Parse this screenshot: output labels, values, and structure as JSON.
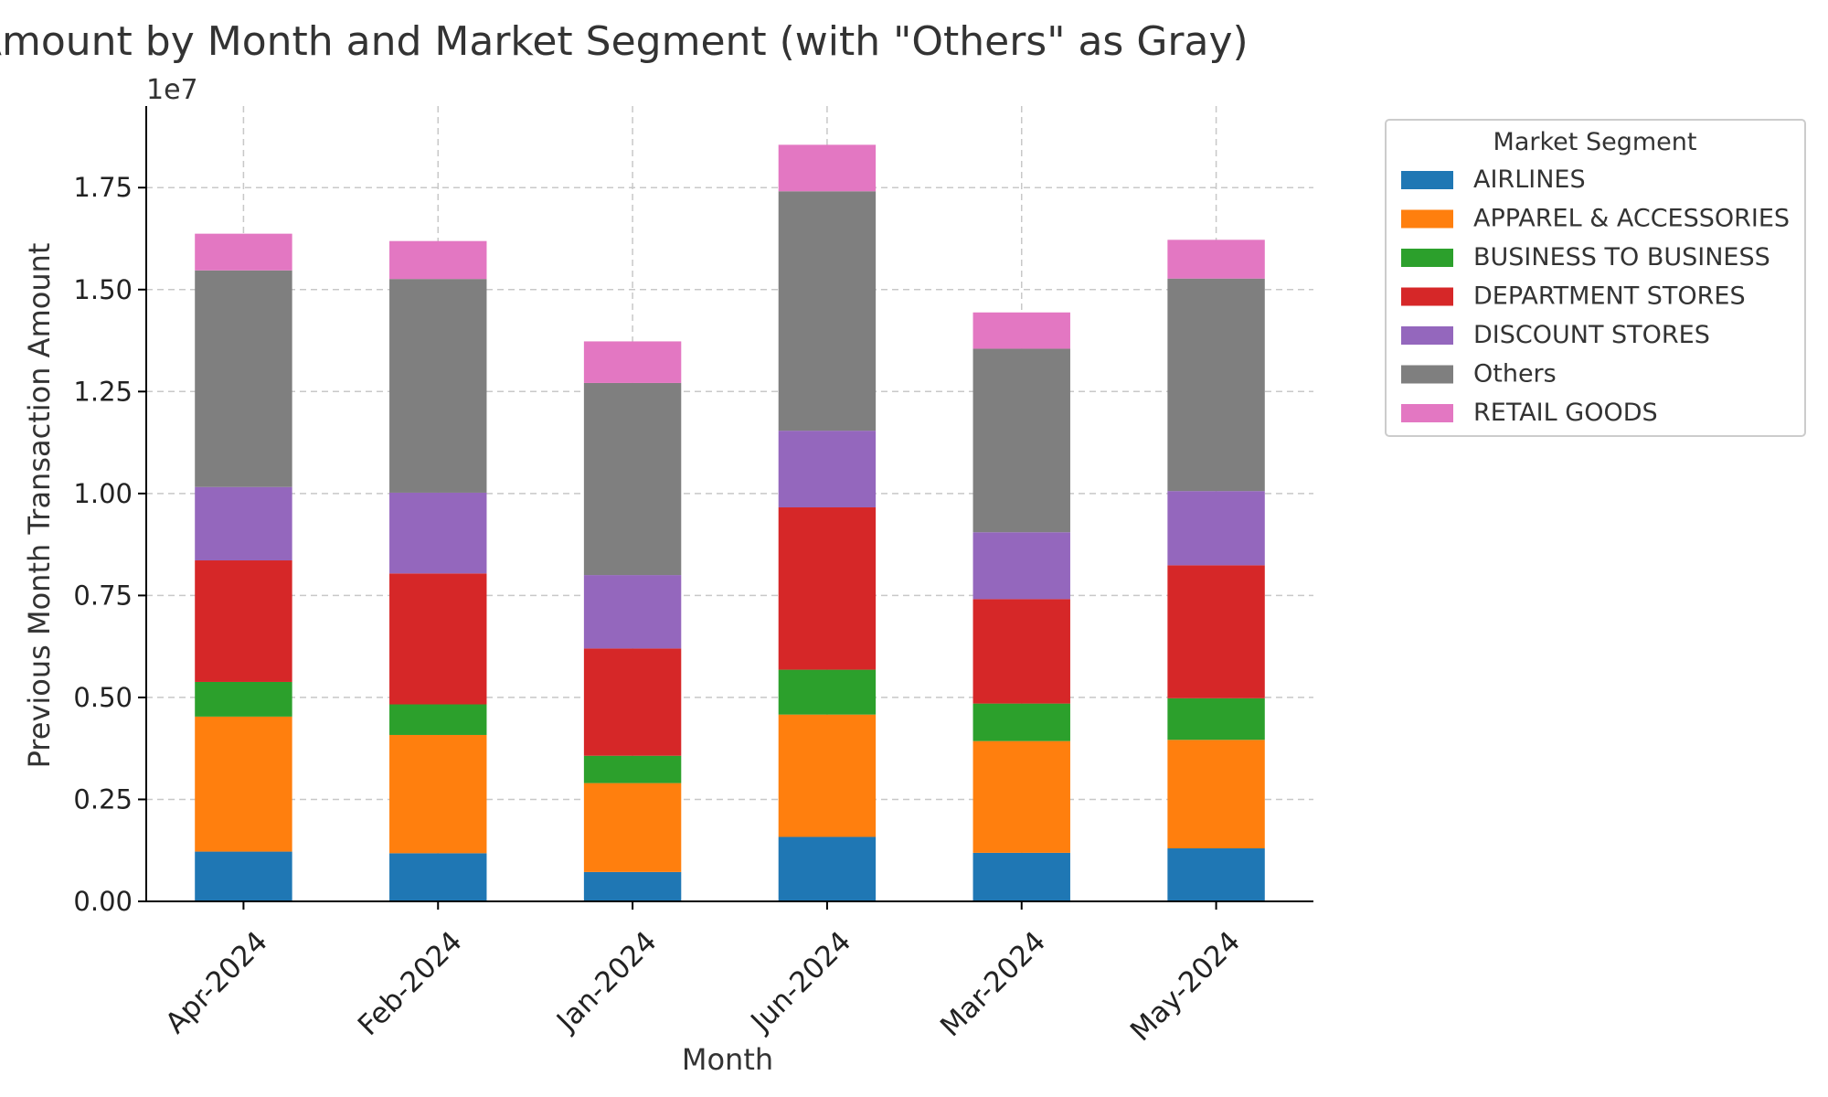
{
  "chart_data": {
    "type": "bar",
    "stacked": true,
    "title": "Month Transaction Amount by Month and Market Segment (with \"Others\" as Gray)",
    "xlabel": "Month",
    "ylabel": "Previous Month Transaction Amount",
    "y_offset_label": "1e7",
    "ylim": [
      0,
      19500000
    ],
    "yticks": [
      0,
      2500000,
      5000000,
      7500000,
      10000000,
      12500000,
      15000000,
      17500000
    ],
    "ytick_labels": [
      "0.00",
      "0.25",
      "0.50",
      "0.75",
      "1.00",
      "1.25",
      "1.50",
      "1.75"
    ],
    "grid": true,
    "legend": {
      "title": "Market Segment",
      "placement": "outside-right-top"
    },
    "categories": [
      "Apr-2024",
      "Feb-2024",
      "Jan-2024",
      "Jun-2024",
      "Mar-2024",
      "May-2024"
    ],
    "series": [
      {
        "name": "AIRLINES",
        "color": "#1f77b4",
        "values": [
          1220000,
          1180000,
          720000,
          1580000,
          1190000,
          1300000
        ]
      },
      {
        "name": "APPAREL & ACCESSORIES",
        "color": "#ff7f0e",
        "values": [
          3310000,
          2900000,
          2180000,
          3000000,
          2740000,
          2660000
        ]
      },
      {
        "name": "BUSINESS TO BUSINESS",
        "color": "#2ca02c",
        "values": [
          850000,
          750000,
          670000,
          1100000,
          920000,
          1020000
        ]
      },
      {
        "name": "DEPARTMENT STORES",
        "color": "#d62728",
        "values": [
          2980000,
          3210000,
          2630000,
          3980000,
          2560000,
          3260000
        ]
      },
      {
        "name": "DISCOUNT STORES",
        "color": "#9467bd",
        "values": [
          1800000,
          1980000,
          1800000,
          1880000,
          1640000,
          1820000
        ]
      },
      {
        "name": "Others",
        "color": "#7f7f7f",
        "values": [
          5310000,
          5240000,
          4710000,
          5870000,
          4500000,
          5210000
        ]
      },
      {
        "name": "RETAIL GOODS",
        "color": "#e377c2",
        "values": [
          900000,
          930000,
          1020000,
          1140000,
          890000,
          950000
        ]
      }
    ]
  }
}
